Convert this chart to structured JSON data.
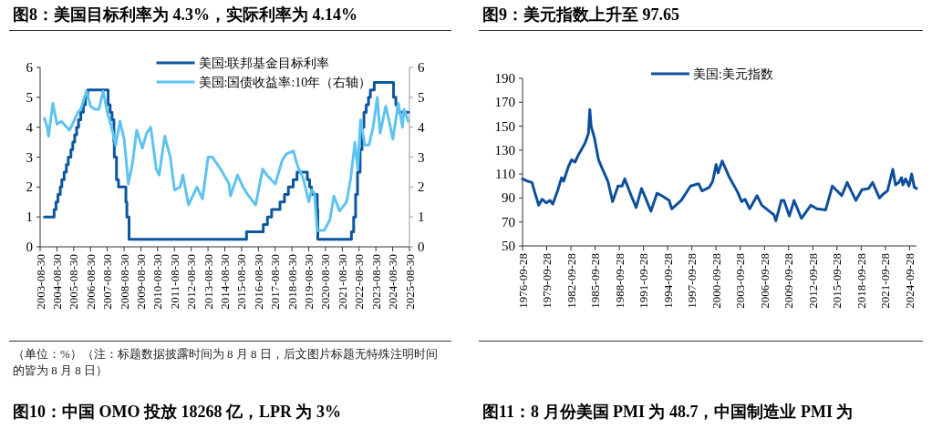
{
  "chart_data": [
    {
      "type": "line",
      "title": "图8：美国目标利率为 4.3%，实际利率为 4.14%",
      "legend": "top",
      "xlim": [
        "2003-08-30",
        "2025-08-30"
      ],
      "xticks": [
        "2003-08-30",
        "2004-08-30",
        "2005-08-30",
        "2006-08-30",
        "2007-08-30",
        "2008-08-30",
        "2009-08-30",
        "2010-08-30",
        "2011-08-30",
        "2012-08-30",
        "2013-08-30",
        "2014-08-30",
        "2015-08-30",
        "2016-08-30",
        "2017-08-30",
        "2018-08-30",
        "2019-08-30",
        "2020-08-30",
        "2021-08-30",
        "2022-08-30",
        "2023-08-30",
        "2024-08-30",
        "2025-08-30"
      ],
      "ylim": [
        0,
        6
      ],
      "yticks": [
        0,
        1,
        2,
        3,
        4,
        5,
        6
      ],
      "y2lim": [
        0,
        6
      ],
      "y2ticks": [
        0,
        1,
        2,
        3,
        4,
        5,
        6
      ],
      "annotations": [
        "（单位：%）（注：标题数据披露时间为 8 月 8 日，后文图片标题无特殊注明时间的皆为 8 月 8 日）",
        "图10：中国 OMO 投放 18268 亿，LPR 为 3%"
      ],
      "series": [
        {
          "name": "美国:联邦基金目标利率",
          "type": "step",
          "color": "#0c56a0",
          "x": [
            "2003-12-01",
            "2004-06-30",
            "2004-08-10",
            "2004-09-21",
            "2004-11-10",
            "2004-12-14",
            "2005-02-02",
            "2005-03-22",
            "2005-05-03",
            "2005-06-30",
            "2005-08-09",
            "2005-09-20",
            "2005-11-01",
            "2005-12-13",
            "2006-01-31",
            "2006-03-28",
            "2006-05-10",
            "2006-06-29",
            "2007-09-18",
            "2007-10-31",
            "2007-12-11",
            "2008-01-22",
            "2008-01-30",
            "2008-03-18",
            "2008-04-30",
            "2008-10-08",
            "2008-10-29",
            "2008-12-16",
            "2015-12-16",
            "2016-12-14",
            "2017-03-15",
            "2017-06-14",
            "2017-12-13",
            "2018-03-21",
            "2018-06-13",
            "2018-09-26",
            "2018-12-19",
            "2019-07-31",
            "2019-09-18",
            "2019-10-30",
            "2020-03-03",
            "2020-03-15",
            "2022-03-16",
            "2022-05-04",
            "2022-06-15",
            "2022-07-27",
            "2022-09-21",
            "2022-11-02",
            "2022-12-14",
            "2023-02-01",
            "2023-03-22",
            "2023-05-03",
            "2023-07-26",
            "2024-09-18",
            "2024-11-07",
            "2024-12-18",
            "2025-08-08"
          ],
          "values": [
            1,
            1.25,
            1.5,
            1.75,
            2,
            2.25,
            2.5,
            2.75,
            3,
            3.25,
            3.5,
            3.75,
            4,
            4.25,
            4.5,
            4.75,
            5,
            5.25,
            4.75,
            4.5,
            4.25,
            3.5,
            3,
            2.25,
            2,
            1.5,
            1,
            0.25,
            0.5,
            0.75,
            1,
            1.25,
            1.5,
            1.75,
            2,
            2.25,
            2.5,
            2.25,
            2,
            1.75,
            1.25,
            0.25,
            0.5,
            1,
            1.75,
            2.5,
            3.25,
            4,
            4.5,
            4.75,
            5,
            5.25,
            5.5,
            5,
            4.75,
            4.5,
            4.5
          ]
        },
        {
          "name": "美国:国债收益率:10年（右轴）",
          "axis": "y2",
          "color": "#5ec3f0",
          "x": [
            "2003-12",
            "2004-02",
            "2004-03",
            "2004-06",
            "2004-09",
            "2004-12",
            "2005-02",
            "2005-06",
            "2005-09",
            "2005-12",
            "2006-02",
            "2006-06",
            "2006-09",
            "2006-12",
            "2007-03",
            "2007-06",
            "2007-09",
            "2007-12",
            "2008-03",
            "2008-06",
            "2008-09",
            "2008-12",
            "2009-03",
            "2009-06",
            "2009-10",
            "2010-01",
            "2010-04",
            "2010-08",
            "2010-10",
            "2011-02",
            "2011-06",
            "2011-09",
            "2012-01",
            "2012-03",
            "2012-07",
            "2012-10",
            "2013-01",
            "2013-05",
            "2013-09",
            "2013-12",
            "2014-06",
            "2014-12",
            "2015-01",
            "2015-06",
            "2015-10",
            "2016-02",
            "2016-07",
            "2016-12",
            "2017-03",
            "2017-09",
            "2018-02",
            "2018-05",
            "2018-10",
            "2019-01",
            "2019-05",
            "2019-09",
            "2019-11",
            "2020-01",
            "2020-03",
            "2020-08",
            "2020-12",
            "2021-03",
            "2021-07",
            "2021-12",
            "2022-03",
            "2022-06",
            "2022-08",
            "2022-10",
            "2023-01",
            "2023-04",
            "2023-07",
            "2023-10",
            "2023-12",
            "2024-04",
            "2024-06",
            "2024-09",
            "2025-01",
            "2025-04",
            "2025-05",
            "2025-08"
          ],
          "values": [
            4.3,
            4.0,
            3.7,
            4.8,
            4.1,
            4.2,
            4.1,
            3.9,
            4.2,
            4.5,
            4.6,
            5.2,
            4.7,
            4.6,
            4.6,
            5.2,
            4.5,
            4.0,
            3.4,
            4.2,
            3.6,
            2.1,
            2.8,
            3.9,
            3.3,
            3.8,
            4.0,
            2.6,
            2.4,
            3.7,
            3.0,
            1.9,
            2.0,
            2.4,
            1.4,
            1.7,
            2.0,
            1.6,
            3.0,
            3.0,
            2.6,
            2.1,
            1.7,
            2.4,
            2.0,
            1.7,
            1.4,
            2.6,
            2.4,
            2.1,
            2.9,
            3.1,
            3.2,
            2.7,
            2.3,
            1.5,
            1.9,
            1.8,
            0.55,
            0.55,
            0.9,
            1.7,
            1.2,
            1.5,
            2.3,
            3.5,
            2.6,
            4.25,
            3.4,
            3.4,
            4.0,
            5.0,
            3.8,
            4.7,
            4.3,
            3.6,
            4.8,
            4.0,
            4.6,
            4.2
          ]
        }
      ]
    },
    {
      "type": "line",
      "title": "图9：美元指数上升至 97.65",
      "legend": "top",
      "xlim": [
        "1976-09-28",
        "2025-08-08"
      ],
      "xticks": [
        "1976-09-28",
        "1979-09-28",
        "1982-09-28",
        "1985-09-28",
        "1988-09-28",
        "1991-09-28",
        "1994-09-28",
        "1997-09-28",
        "2000-09-28",
        "2003-09-28",
        "2006-09-28",
        "2009-09-28",
        "2012-09-28",
        "2015-09-28",
        "2018-09-28",
        "2021-09-28",
        "2024-09-28"
      ],
      "ylim": [
        50,
        190
      ],
      "yticks": [
        50,
        70,
        90,
        110,
        130,
        150,
        170,
        190
      ],
      "annotations": [
        "图11：8 月份美国 PMI 为 48.7，中国制造业 PMI 为"
      ],
      "series": [
        {
          "name": "美国:美元指数",
          "color": "#0d4f9c",
          "x": [
            "1976-09-28",
            "1977-06",
            "1977-12",
            "1978-04",
            "1978-10",
            "1979-03",
            "1979-09",
            "1980-03",
            "1980-07",
            "1981-02",
            "1981-08",
            "1981-11",
            "1982-06",
            "1982-11",
            "1983-04",
            "1983-09",
            "1984-04",
            "1984-07",
            "1984-12",
            "1985-02",
            "1985-04",
            "1985-09",
            "1986-03",
            "1986-09",
            "1987-05",
            "1987-12",
            "1988-08",
            "1989-02",
            "1989-06",
            "1990-03",
            "1990-11",
            "1991-07",
            "1992-01",
            "1992-09",
            "1993-06",
            "1994-01",
            "1994-12",
            "1995-04",
            "1996-06",
            "1997-08",
            "1998-08",
            "1999-01",
            "1999-12",
            "2000-05",
            "2000-10",
            "2001-01",
            "2001-07",
            "2002-06",
            "2003-06",
            "2003-12",
            "2004-05",
            "2004-12",
            "2005-11",
            "2006-06",
            "2007-12",
            "2008-03",
            "2008-11",
            "2009-03",
            "2009-11",
            "2010-06",
            "2011-05",
            "2012-07",
            "2013-04",
            "2014-05",
            "2015-03",
            "2016-05",
            "2017-01",
            "2018-02",
            "2018-11",
            "2019-09",
            "2020-03",
            "2021-01",
            "2021-06",
            "2022-01",
            "2022-09",
            "2023-01",
            "2023-06",
            "2023-10",
            "2023-12",
            "2024-04",
            "2024-09",
            "2025-01",
            "2025-05",
            "2025-08-08"
          ],
          "values": [
            106,
            104,
            103,
            95,
            84,
            89,
            86,
            88,
            85,
            96,
            107,
            104,
            116,
            122,
            120,
            126,
            133,
            136,
            144,
            164,
            150,
            140,
            122,
            114,
            104,
            87,
            100,
            100,
            106,
            93,
            82,
            98,
            90,
            79,
            94,
            92,
            88,
            81,
            88,
            100,
            102,
            96,
            99,
            104,
            118,
            111,
            121,
            107,
            95,
            87,
            89,
            81,
            92,
            84,
            76,
            71,
            88,
            88,
            75,
            88,
            73,
            84,
            81,
            80,
            100,
            92,
            103,
            88,
            97,
            98,
            103,
            90,
            93,
            96,
            114,
            101,
            103,
            107,
            101,
            106,
            100,
            110,
            99,
            98
          ]
        }
      ]
    }
  ]
}
